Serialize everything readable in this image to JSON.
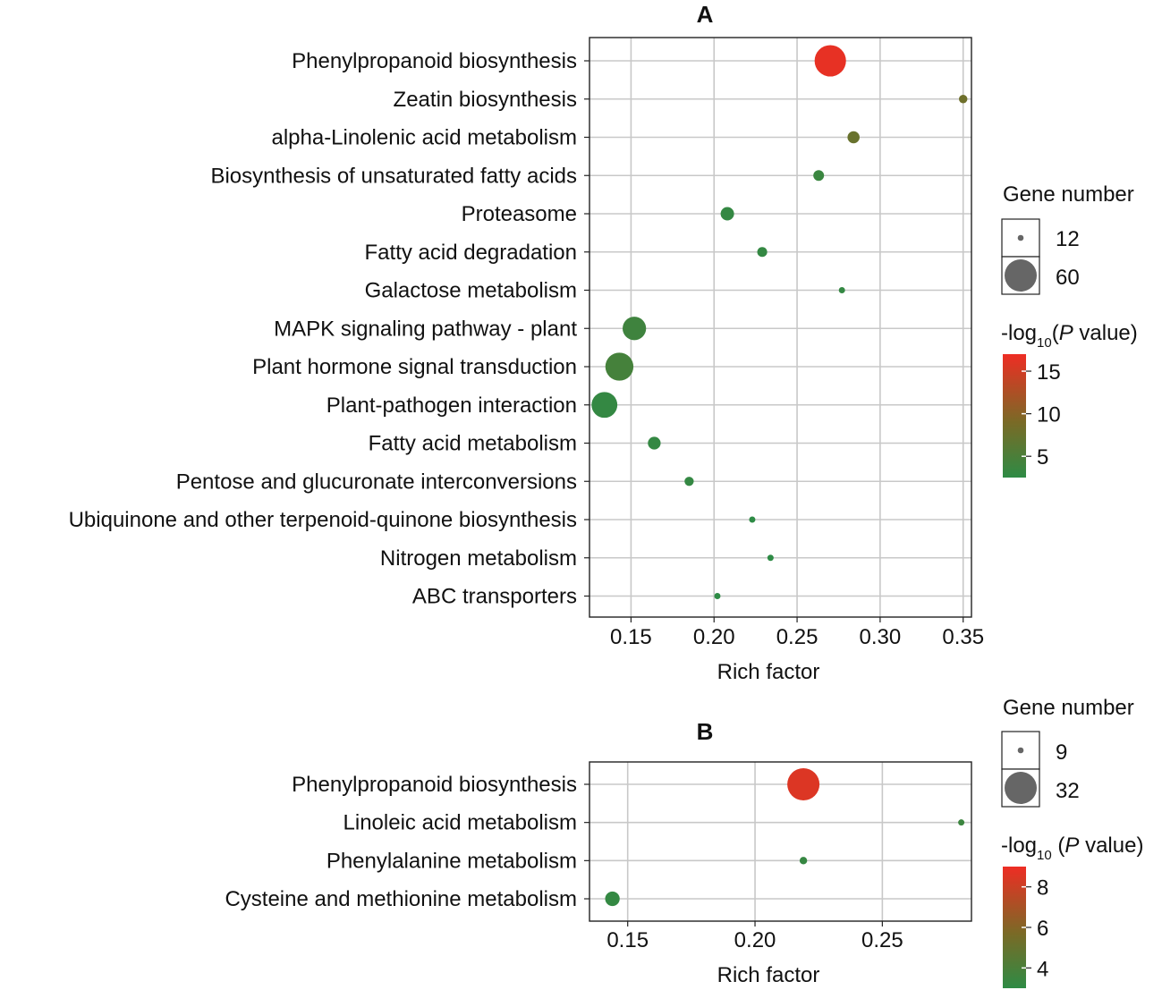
{
  "colors": {
    "low": "#2e8b45",
    "mid": "#7a6a26",
    "high": "#ee2d24",
    "dot_legend": "#666666",
    "grid": "#c8c8c8"
  },
  "chart_data": [
    {
      "type": "scatter",
      "panel": "A",
      "title": "A",
      "xlabel": "Rich factor",
      "xlim": [
        0.125,
        0.355
      ],
      "xticks": [
        0.15,
        0.2,
        0.25,
        0.3,
        0.35
      ],
      "xtick_labels": [
        "0.15",
        "0.20",
        "0.25",
        "0.30",
        "0.35"
      ],
      "categories": [
        "Phenylpropanoid biosynthesis",
        "Zeatin biosynthesis",
        "alpha-Linolenic acid metabolism",
        "Biosynthesis of unsaturated fatty acids",
        "Proteasome",
        "Fatty acid degradation",
        "Galactose metabolism",
        "MAPK signaling pathway - plant",
        "Plant hormone signal transduction",
        "Plant-pathogen interaction",
        "Fatty acid metabolism",
        "Pentose and glucuronate interconversions",
        "Ubiquinone and other terpenoid-quinone biosynthesis",
        "Nitrogen metabolism",
        "ABC transporters"
      ],
      "rich_factor": [
        0.27,
        0.35,
        0.284,
        0.263,
        0.208,
        0.229,
        0.277,
        0.152,
        0.143,
        0.134,
        0.164,
        0.185,
        0.223,
        0.234,
        0.202
      ],
      "gene_number": [
        58,
        15,
        20,
        18,
        22,
        17,
        11,
        40,
        50,
        45,
        21,
        16,
        10,
        9,
        11
      ],
      "neg_log10_p": [
        16.5,
        8.0,
        7.5,
        3.5,
        3.0,
        3.0,
        3.0,
        4.0,
        4.5,
        3.0,
        3.0,
        3.0,
        2.5,
        2.5,
        2.5
      ],
      "size_legend": {
        "title": "Gene number",
        "values": [
          12,
          60
        ],
        "labels": [
          "12",
          "60"
        ]
      },
      "color_legend": {
        "title_prefix": "-log",
        "title_sub": "10",
        "title_open": "(",
        "title_italic": "P",
        "title_suffix": " value)",
        "min": 2.5,
        "max": 17,
        "ticks": [
          15,
          10,
          5
        ],
        "tick_labels": [
          "15",
          "10",
          "5"
        ]
      }
    },
    {
      "type": "scatter",
      "panel": "B",
      "title": "B",
      "xlabel": "Rich factor",
      "xlim": [
        0.135,
        0.285
      ],
      "xticks": [
        0.15,
        0.2,
        0.25
      ],
      "xtick_labels": [
        "0.15",
        "0.20",
        "0.25"
      ],
      "categories": [
        "Phenylpropanoid biosynthesis",
        "Linoleic acid metabolism",
        "Phenylalanine metabolism",
        "Cysteine and methionine metabolism"
      ],
      "rich_factor": [
        0.219,
        0.281,
        0.219,
        0.144
      ],
      "gene_number": [
        32,
        8,
        10,
        15
      ],
      "neg_log10_p": [
        8.5,
        3.5,
        3.3,
        3.2
      ],
      "size_legend": {
        "title": "Gene number",
        "values": [
          9,
          32
        ],
        "labels": [
          "9",
          "32"
        ]
      },
      "color_legend": {
        "title_prefix": "-log",
        "title_sub": "10",
        "title_open": " (",
        "title_italic": "P",
        "title_suffix": " value)",
        "min": 3.0,
        "max": 9.0,
        "ticks": [
          8,
          6,
          4
        ],
        "tick_labels": [
          "8",
          "6",
          "4"
        ]
      }
    }
  ]
}
